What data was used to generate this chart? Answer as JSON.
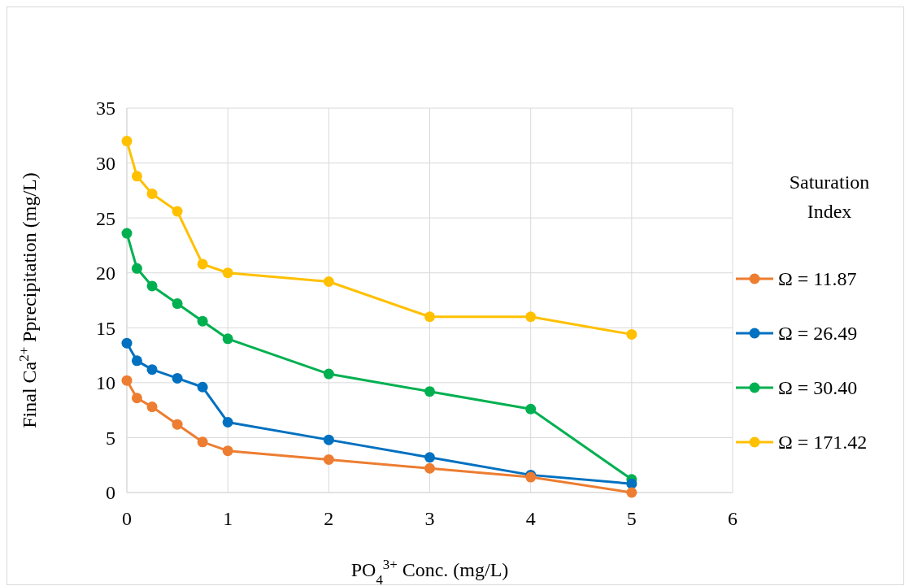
{
  "chart_data": {
    "type": "line",
    "xlabel": "PO$_{4}$$^{3+}$ Conc. (mg/L)",
    "ylabel": "Final Ca$^{2+}$ Pprecipitation (mg/L)",
    "legend_title": "Saturation Index",
    "x": [
      0,
      0.1,
      0.25,
      0.5,
      0.75,
      1,
      2,
      3,
      4,
      5
    ],
    "xlim": [
      0,
      6
    ],
    "xticks": [
      0,
      1,
      2,
      3,
      4,
      5,
      6
    ],
    "ylim": [
      0,
      35
    ],
    "yticks": [
      0,
      5,
      10,
      15,
      20,
      25,
      30,
      35
    ],
    "grid": true,
    "legend": "right",
    "marker": "circle",
    "line_style": "solid",
    "series": [
      {
        "name": "Ω = 11.87",
        "color": "#ed7d31",
        "values": [
          10.2,
          8.6,
          7.8,
          6.2,
          4.6,
          3.8,
          3.0,
          2.2,
          1.4,
          0
        ]
      },
      {
        "name": "Ω = 26.49",
        "color": "#0070c0",
        "values": [
          13.6,
          12.0,
          11.2,
          10.4,
          9.6,
          6.4,
          4.8,
          3.2,
          1.6,
          0.8
        ]
      },
      {
        "name": "Ω = 30.40",
        "color": "#00b050",
        "values": [
          23.6,
          20.4,
          18.8,
          17.2,
          15.6,
          14.0,
          10.8,
          9.2,
          7.6,
          1.2
        ]
      },
      {
        "name": "Ω = 171.42",
        "color": "#ffc000",
        "values": [
          32,
          28.8,
          27.2,
          25.6,
          20.8,
          20.0,
          19.2,
          16.0,
          16.0,
          14.4
        ]
      }
    ]
  }
}
